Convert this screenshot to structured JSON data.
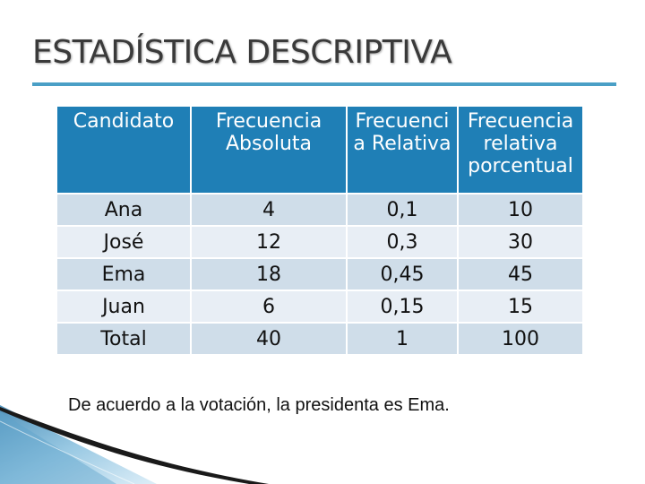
{
  "title": "ESTADÍSTICA DESCRIPTIVA",
  "table": {
    "headers": [
      [
        "Candidato"
      ],
      [
        "Frecuencia",
        "Absoluta"
      ],
      [
        "Frecuenci",
        "a Relativa"
      ],
      [
        "Frecuencia",
        "relativa",
        "porcentual"
      ]
    ],
    "rows": [
      [
        "Ana",
        "4",
        "0,1",
        "10"
      ],
      [
        "José",
        "12",
        "0,3",
        "30"
      ],
      [
        "Ema",
        "18",
        "0,45",
        "45"
      ],
      [
        "Juan",
        "6",
        "0,15",
        "15"
      ],
      [
        "Total",
        "40",
        "1",
        "100"
      ]
    ]
  },
  "note": "De acuerdo a la votación, la presidenta es Ema.",
  "colors": {
    "header_bg": "#1f7fb6",
    "row_odd": "#cfdde9",
    "row_even": "#e8eef5",
    "accent_rule": "#4a9fc6",
    "title": "#3a3a3a"
  }
}
